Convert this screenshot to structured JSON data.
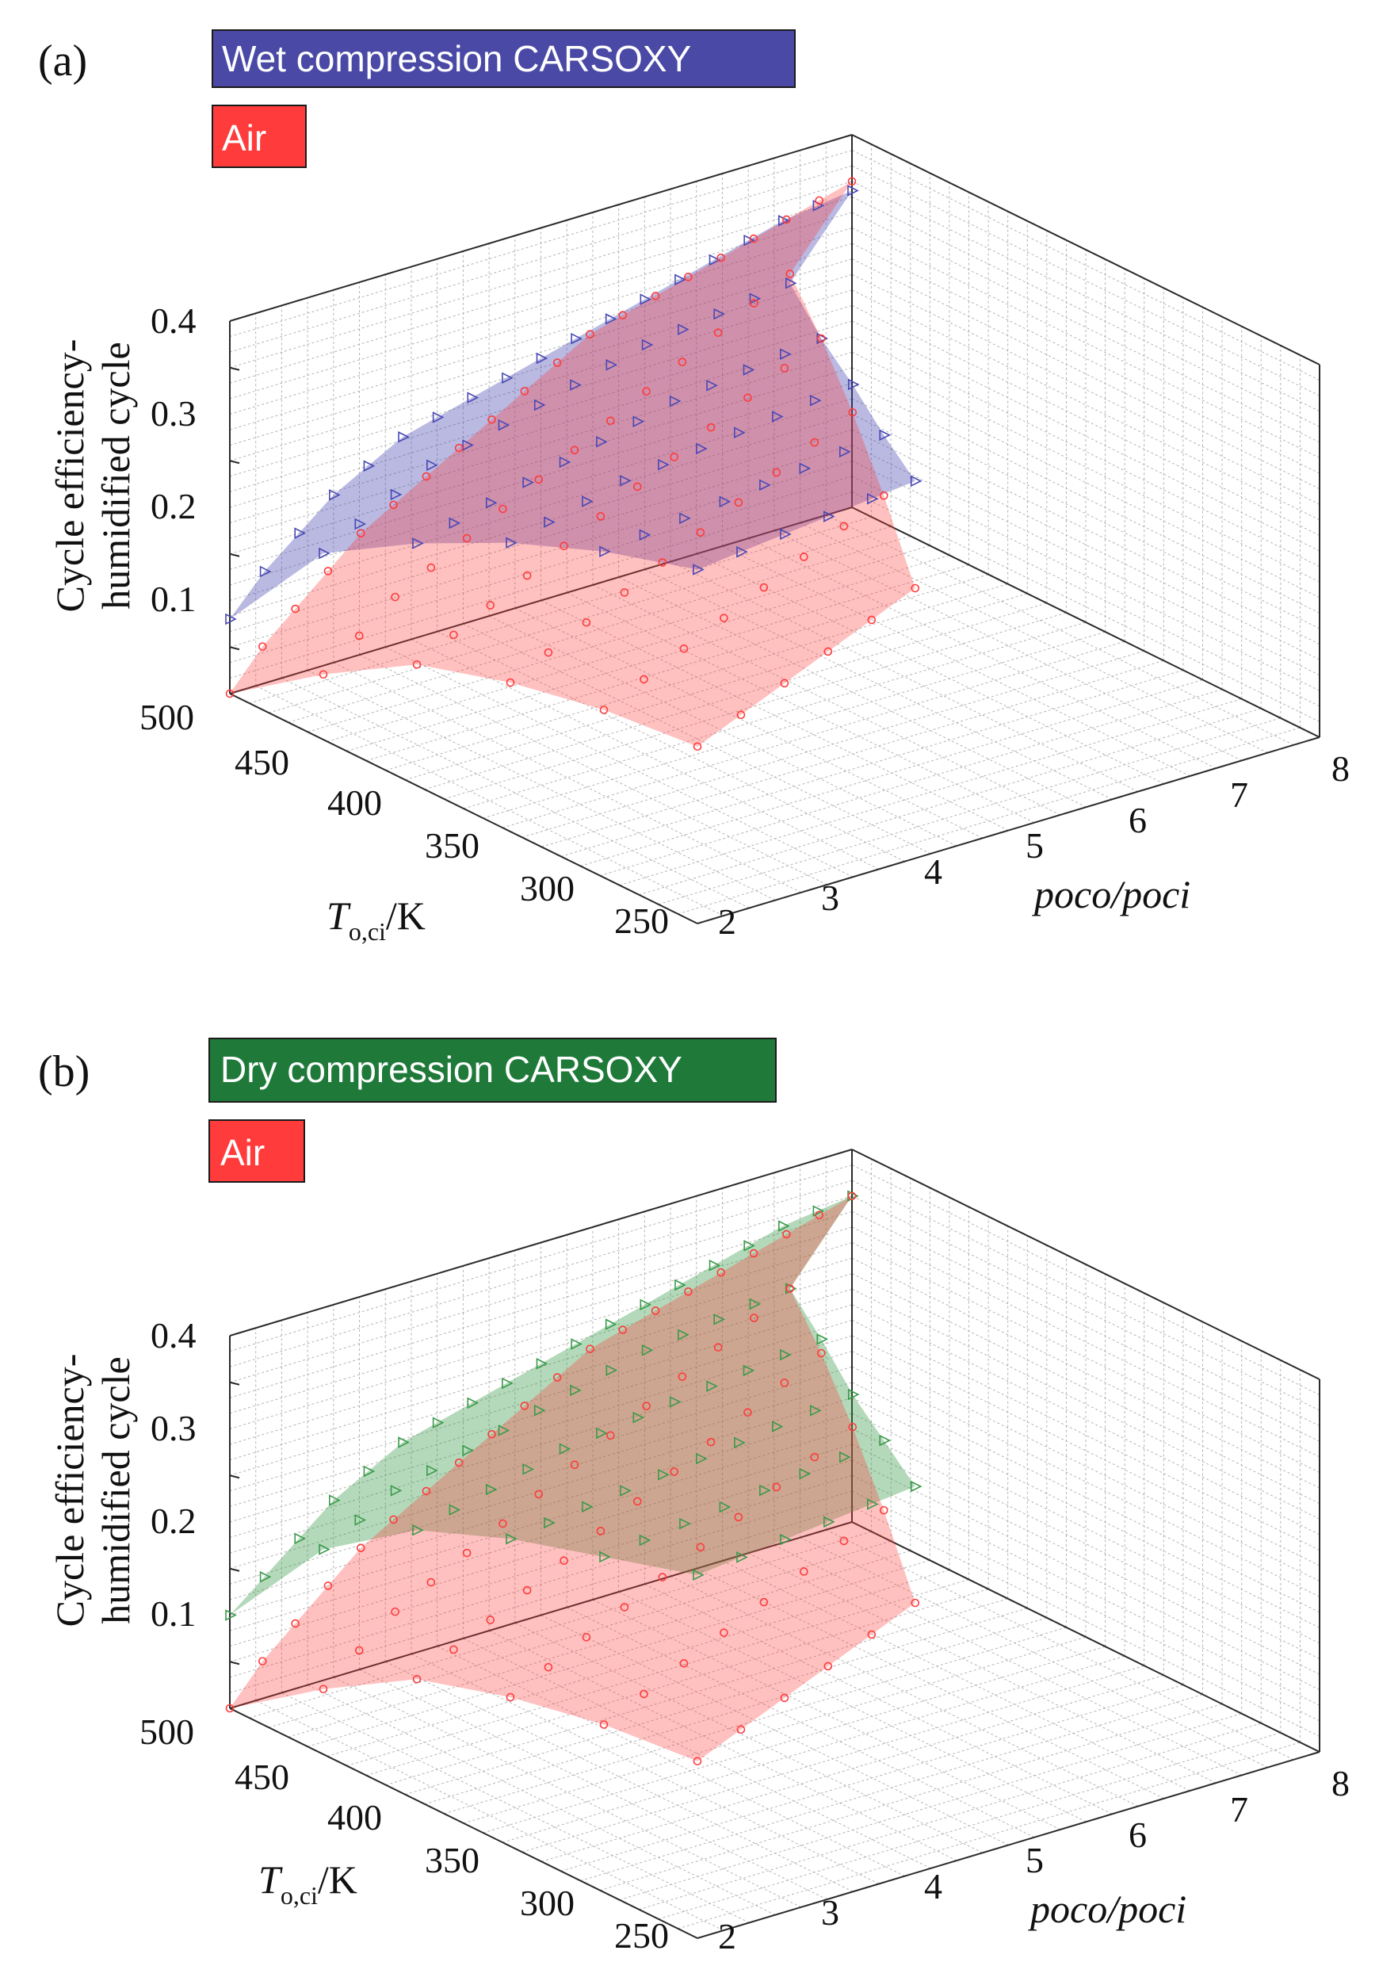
{
  "chart_data": [
    {
      "type": "surface3d",
      "panel_label": "(a)",
      "legend": [
        {
          "label": "Wet compression CARSOXY",
          "color": "#3f3f9f",
          "marker": "triangle-right"
        },
        {
          "label": "Air",
          "color": "#ff3b3b",
          "marker": "circle"
        }
      ],
      "zlabel": "Cycle efficiency-humidified cycle",
      "zlabel_lines": [
        "Cycle efficiency-",
        "humidified cycle"
      ],
      "zticks": [
        "0.1",
        "0.2",
        "0.3",
        "0.4"
      ],
      "ylabel_main": "T",
      "ylabel_sub": "o,ci",
      "ylabel_unit": "/K",
      "yticks": [
        "500",
        "450",
        "400",
        "350",
        "300",
        "250"
      ],
      "xlabel": "poco/poci",
      "xticks": [
        "2",
        "3",
        "4",
        "5",
        "6",
        "7",
        "8"
      ],
      "xlim": [
        2,
        8
      ],
      "ylim": [
        250,
        500
      ],
      "zlim": [
        0.05,
        0.45
      ],
      "series": [
        {
          "name": "Wet compression CARSOXY",
          "color": "#4848b4",
          "rows": [
            {
              "T": 500,
              "eff": [
                0.13,
                0.17,
                0.2,
                0.23,
                0.25,
                0.27,
                0.28,
                0.29,
                0.3,
                0.31,
                0.32,
                0.33,
                0.34,
                0.35,
                0.36,
                0.37,
                0.38,
                0.385,
                0.39
              ]
            },
            {
              "T": 450,
              "eff": [
                0.25,
                0.27,
                0.29,
                0.31,
                0.32,
                0.33,
                0.34,
                0.35,
                0.36,
                0.37,
                0.375,
                0.38,
                0.385,
                0.39
              ]
            },
            {
              "T": 400,
              "eff": [
                0.31,
                0.32,
                0.33,
                0.34,
                0.35,
                0.36,
                0.37,
                0.38,
                0.385,
                0.39,
                0.395,
                0.4
              ]
            },
            {
              "T": 350,
              "eff": [
                0.36,
                0.37,
                0.38,
                0.39,
                0.395,
                0.4,
                0.405,
                0.41,
                0.415,
                0.42
              ]
            },
            {
              "T": 300,
              "eff": [
                0.4,
                0.405,
                0.41,
                0.415,
                0.42,
                0.425,
                0.43,
                0.435
              ]
            },
            {
              "T": 250,
              "eff": [
                0.43,
                0.435,
                0.44,
                0.445,
                0.45,
                0.455
              ]
            }
          ]
        },
        {
          "name": "Air",
          "color": "#ff3b3b",
          "rows": [
            {
              "T": 500,
              "eff": [
                0.05,
                0.09,
                0.12,
                0.15,
                0.18,
                0.2,
                0.22,
                0.24,
                0.26,
                0.28,
                0.3,
                0.32,
                0.33,
                0.34,
                0.35,
                0.36,
                0.37,
                0.38,
                0.39,
                0.4
              ]
            },
            {
              "T": 450,
              "eff": [
                0.12,
                0.15,
                0.18,
                0.2,
                0.22,
                0.24,
                0.26,
                0.28,
                0.3,
                0.32,
                0.34,
                0.36,
                0.38,
                0.4
              ]
            },
            {
              "T": 400,
              "eff": [
                0.18,
                0.2,
                0.22,
                0.24,
                0.26,
                0.28,
                0.3,
                0.32,
                0.34,
                0.36,
                0.38,
                0.4
              ]
            },
            {
              "T": 350,
              "eff": [
                0.21,
                0.23,
                0.25,
                0.27,
                0.29,
                0.31,
                0.33,
                0.35,
                0.37,
                0.39
              ]
            },
            {
              "T": 300,
              "eff": [
                0.23,
                0.25,
                0.27,
                0.29,
                0.31,
                0.33,
                0.35,
                0.37
              ]
            },
            {
              "T": 250,
              "eff": [
                0.24,
                0.26,
                0.28,
                0.3,
                0.32,
                0.34
              ]
            }
          ]
        }
      ]
    },
    {
      "type": "surface3d",
      "panel_label": "(b)",
      "legend": [
        {
          "label": "Dry compression CARSOXY",
          "color": "#1f7a3a",
          "marker": "triangle-right"
        },
        {
          "label": "Air",
          "color": "#ff3b3b",
          "marker": "circle"
        }
      ],
      "zlabel": "Cycle efficiency-humidified cycle",
      "zlabel_lines": [
        "Cycle efficiency-",
        "humidified cycle"
      ],
      "zticks": [
        "0.1",
        "0.2",
        "0.3",
        "0.4"
      ],
      "ylabel_main": "T",
      "ylabel_sub": "o,ci",
      "ylabel_unit": "/K",
      "yticks": [
        "500",
        "450",
        "400",
        "350",
        "300",
        "250"
      ],
      "xlabel": "poco/poci",
      "xticks": [
        "2",
        "3",
        "4",
        "5",
        "6",
        "7",
        "8"
      ],
      "xlim": [
        2,
        8
      ],
      "ylim": [
        250,
        500
      ],
      "zlim": [
        0.05,
        0.45
      ],
      "series": [
        {
          "name": "Dry compression CARSOXY",
          "color": "#3a9a4a",
          "rows": [
            {
              "T": 500,
              "eff": [
                0.15,
                0.18,
                0.21,
                0.24,
                0.26,
                0.28,
                0.29,
                0.3,
                0.31,
                0.32,
                0.33,
                0.34,
                0.35,
                0.36,
                0.37,
                0.38,
                0.39,
                0.395,
                0.4
              ]
            },
            {
              "T": 450,
              "eff": [
                0.27,
                0.29,
                0.31,
                0.32,
                0.33,
                0.34,
                0.35,
                0.36,
                0.37,
                0.38,
                0.385,
                0.39,
                0.395,
                0.4
              ]
            },
            {
              "T": 400,
              "eff": [
                0.34,
                0.35,
                0.36,
                0.37,
                0.38,
                0.385,
                0.39,
                0.395,
                0.4,
                0.405,
                0.41,
                0.415
              ]
            },
            {
              "T": 350,
              "eff": [
                0.38,
                0.385,
                0.39,
                0.395,
                0.4,
                0.405,
                0.41,
                0.415,
                0.42,
                0.425
              ]
            },
            {
              "T": 300,
              "eff": [
                0.41,
                0.415,
                0.42,
                0.425,
                0.43,
                0.435,
                0.44,
                0.445
              ]
            },
            {
              "T": 250,
              "eff": [
                0.44,
                0.445,
                0.45,
                0.455,
                0.46,
                0.465
              ]
            }
          ]
        },
        {
          "name": "Air",
          "color": "#ff3b3b",
          "rows": [
            {
              "T": 500,
              "eff": [
                0.05,
                0.09,
                0.12,
                0.15,
                0.18,
                0.2,
                0.22,
                0.24,
                0.26,
                0.28,
                0.3,
                0.32,
                0.33,
                0.34,
                0.35,
                0.36,
                0.37,
                0.38,
                0.39,
                0.4
              ]
            },
            {
              "T": 450,
              "eff": [
                0.12,
                0.15,
                0.18,
                0.2,
                0.22,
                0.24,
                0.26,
                0.28,
                0.3,
                0.32,
                0.34,
                0.36,
                0.38,
                0.4
              ]
            },
            {
              "T": 400,
              "eff": [
                0.18,
                0.2,
                0.22,
                0.24,
                0.26,
                0.28,
                0.3,
                0.32,
                0.34,
                0.36,
                0.38,
                0.4
              ]
            },
            {
              "T": 350,
              "eff": [
                0.21,
                0.23,
                0.25,
                0.27,
                0.29,
                0.31,
                0.33,
                0.35,
                0.37,
                0.39
              ]
            },
            {
              "T": 300,
              "eff": [
                0.23,
                0.25,
                0.27,
                0.29,
                0.31,
                0.33,
                0.35,
                0.37
              ]
            },
            {
              "T": 250,
              "eff": [
                0.24,
                0.26,
                0.28,
                0.3,
                0.32,
                0.34
              ]
            }
          ]
        }
      ]
    }
  ]
}
